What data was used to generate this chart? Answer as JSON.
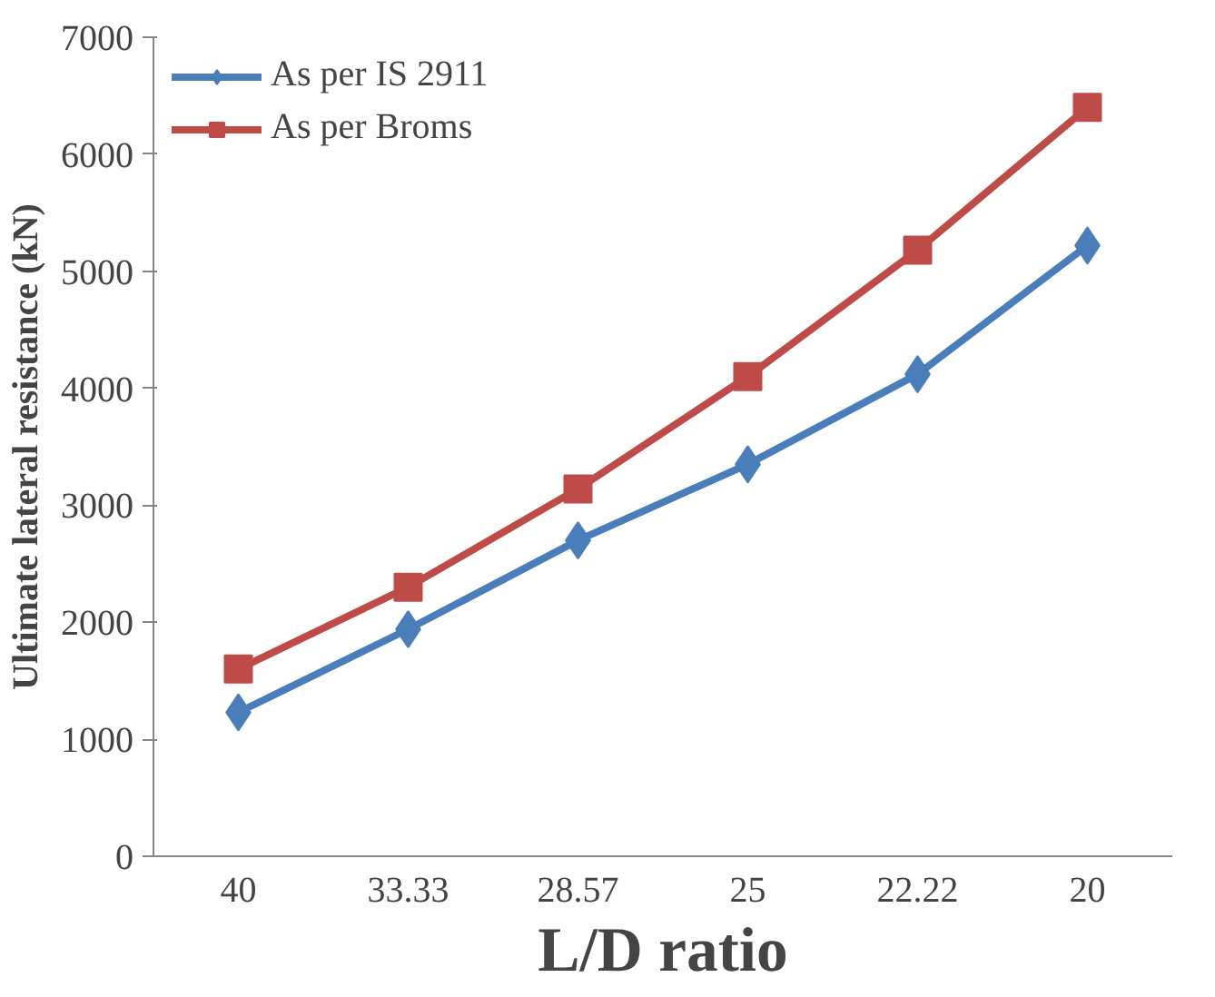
{
  "chart_data": {
    "type": "line",
    "xlabel": "L/D ratio",
    "ylabel": "Ultimate lateral resistance (kN)",
    "categories": [
      "40",
      "33.33",
      "28.57",
      "25",
      "22.22",
      "20"
    ],
    "series": [
      {
        "name": "As per IS 2911",
        "color": "#4a7ebb",
        "marker": "diamond",
        "values": [
          1230,
          1940,
          2700,
          3350,
          4120,
          5220
        ]
      },
      {
        "name": "As per Broms",
        "color": "#be4b48",
        "marker": "square",
        "values": [
          1600,
          2300,
          3140,
          4100,
          5180,
          6400
        ]
      }
    ],
    "ylim": [
      0,
      7000
    ],
    "yticks": [
      0,
      1000,
      2000,
      3000,
      4000,
      5000,
      6000,
      7000
    ],
    "grid": false,
    "legend": "top left",
    "line_style": "solid"
  }
}
